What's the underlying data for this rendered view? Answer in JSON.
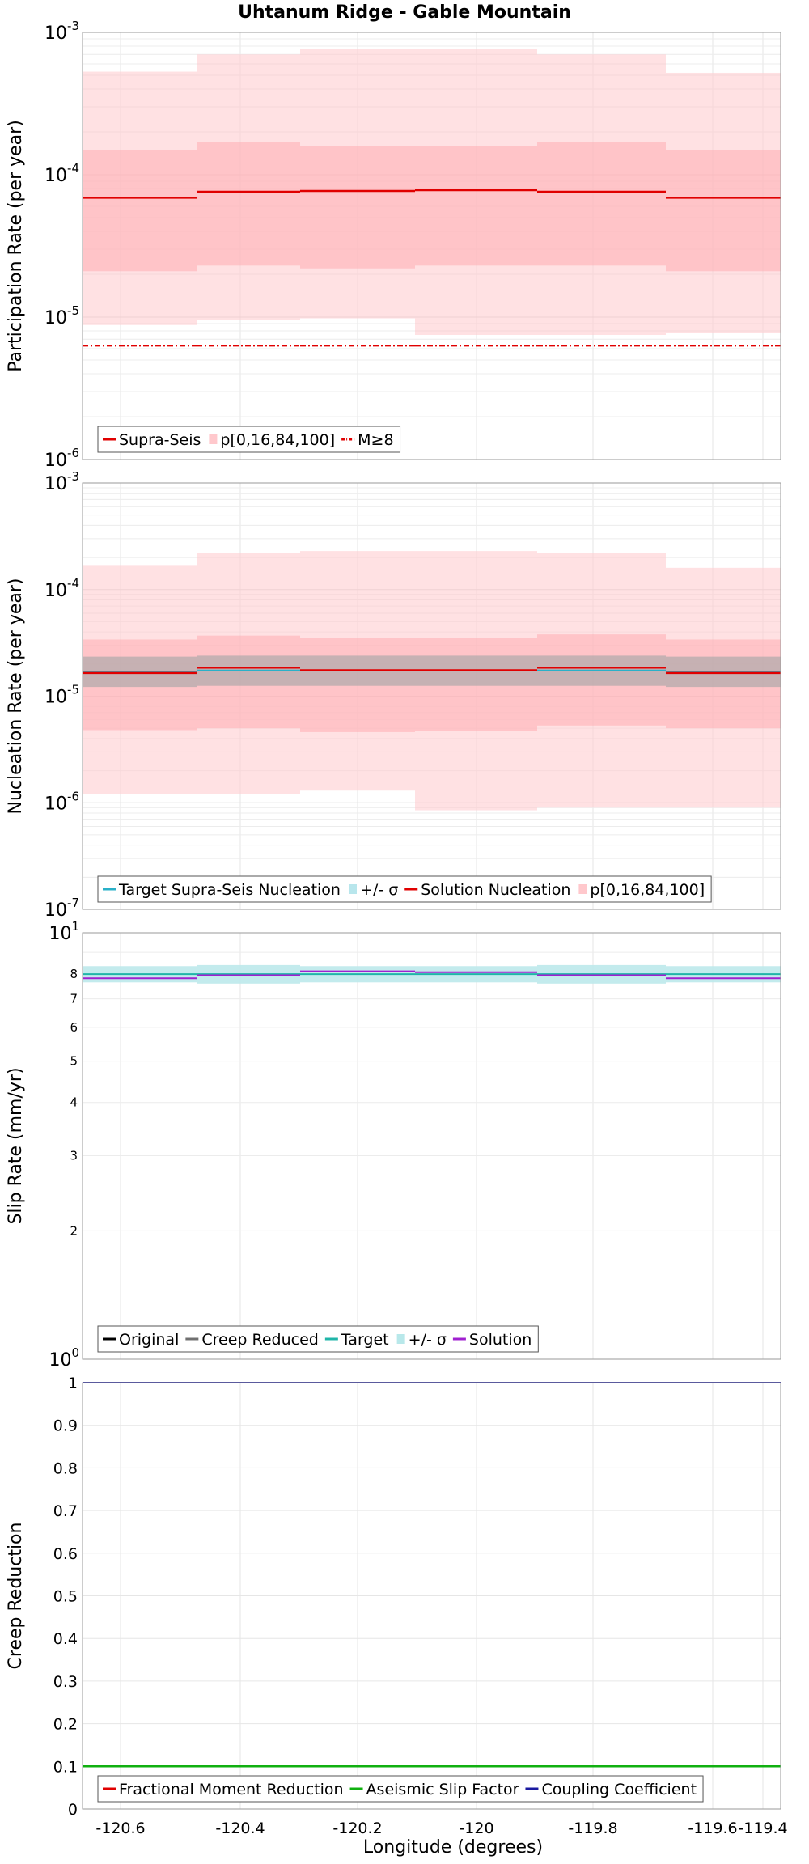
{
  "figure": {
    "title": "Uhtanum Ridge - Gable Mountain",
    "xlabel": "Longitude (degrees)",
    "x_ticks": [
      "-120.6",
      "-120.4",
      "-120.2",
      "-120",
      "-119.8",
      "-119.6",
      "-119.4"
    ]
  },
  "chart_data": [
    {
      "type": "line",
      "panel": "participation",
      "ylabel": "Participation Rate (per year)",
      "y_scale": "log",
      "ylim": [
        1e-06,
        0.001
      ],
      "xlim": [
        -120.68,
        -119.38
      ],
      "y_ticks": [
        {
          "base": "10",
          "exp": "-6",
          "value": 1e-06
        },
        {
          "base": "10",
          "exp": "-5",
          "value": 1e-05
        },
        {
          "base": "10",
          "exp": "-4",
          "value": 0.0001
        },
        {
          "base": "10",
          "exp": "-3",
          "value": 0.001
        }
      ],
      "sections": [
        -120.68,
        -120.465,
        -120.275,
        -120.055,
        -119.835,
        -119.59,
        -119.38
      ],
      "bands": [
        {
          "color": "#ffc8cc",
          "opacity": 0.55,
          "low": [
            8.8e-06,
            9.5e-06,
            9.8e-06,
            7.5e-06,
            7.5e-06,
            7.8e-06
          ],
          "high": [
            0.00053,
            0.0007,
            0.00076,
            0.00076,
            0.0007,
            0.00052
          ]
        },
        {
          "color": "#ffadb2",
          "opacity": 0.55,
          "low": [
            2.1e-05,
            2.3e-05,
            2.2e-05,
            2.3e-05,
            2.3e-05,
            2.1e-05
          ],
          "high": [
            0.00015,
            0.00017,
            0.00016,
            0.00016,
            0.00017,
            0.00015
          ]
        }
      ],
      "series": [
        {
          "name": "Supra-Seis",
          "color": "#e00000",
          "dash": "",
          "width": 2.5,
          "values": [
            6.9e-05,
            7.6e-05,
            7.7e-05,
            7.8e-05,
            7.6e-05,
            6.9e-05
          ]
        },
        {
          "name": "M≥8",
          "color": "#e00000",
          "dash": "7,3,2,3",
          "width": 2,
          "values": [
            6.3e-06,
            6.3e-06,
            6.3e-06,
            6.3e-06,
            6.3e-06,
            6.3e-06
          ]
        }
      ],
      "legend": [
        {
          "label": "Supra-Seis",
          "kind": "line",
          "color": "#e00000"
        },
        {
          "label": "p[0,16,84,100]",
          "kind": "band",
          "color": "#ffc8cc"
        },
        {
          "label": "M≥8",
          "kind": "dashline",
          "color": "#e00000"
        }
      ]
    },
    {
      "type": "line",
      "panel": "nucleation",
      "ylabel": "Nucleation Rate (per year)",
      "y_scale": "log",
      "ylim": [
        1e-07,
        0.001
      ],
      "xlim": [
        -120.68,
        -119.38
      ],
      "y_ticks": [
        {
          "base": "10",
          "exp": "-7",
          "value": 1e-07
        },
        {
          "base": "10",
          "exp": "-6",
          "value": 1e-06
        },
        {
          "base": "10",
          "exp": "-5",
          "value": 1e-05
        },
        {
          "base": "10",
          "exp": "-4",
          "value": 0.0001
        },
        {
          "base": "10",
          "exp": "-3",
          "value": 0.001
        }
      ],
      "sections": [
        -120.68,
        -120.465,
        -120.275,
        -120.055,
        -119.835,
        -119.59,
        -119.38
      ],
      "bands": [
        {
          "color": "#ffc8cc",
          "opacity": 0.55,
          "low": [
            1.2e-06,
            1.2e-06,
            1.3e-06,
            8.5e-07,
            9e-07,
            9e-07
          ],
          "high": [
            0.00017,
            0.00022,
            0.00023,
            0.00023,
            0.00022,
            0.00016
          ]
        },
        {
          "color": "#ffadb2",
          "opacity": 0.55,
          "low": [
            4.8e-06,
            5e-06,
            4.6e-06,
            4.7e-06,
            5.3e-06,
            5e-06
          ],
          "high": [
            3.4e-05,
            3.7e-05,
            3.5e-05,
            3.5e-05,
            3.8e-05,
            3.4e-05
          ]
        },
        {
          "color": "#a8a8a8",
          "opacity": 0.65,
          "low": [
            1.22e-05,
            1.25e-05,
            1.25e-05,
            1.25e-05,
            1.25e-05,
            1.22e-05
          ],
          "high": [
            2.35e-05,
            2.4e-05,
            2.4e-05,
            2.4e-05,
            2.4e-05,
            2.35e-05
          ]
        }
      ],
      "series": [
        {
          "name": "Target Supra-Seis Nucleation",
          "color": "#2ab0c8",
          "dash": "",
          "width": 1.5,
          "values": [
            1.7e-05,
            1.75e-05,
            1.75e-05,
            1.75e-05,
            1.75e-05,
            1.7e-05
          ]
        },
        {
          "name": "Solution Nucleation",
          "color": "#e00000",
          "dash": "",
          "width": 2.5,
          "values": [
            1.65e-05,
            1.85e-05,
            1.75e-05,
            1.75e-05,
            1.85e-05,
            1.65e-05
          ]
        }
      ],
      "legend": [
        {
          "label": "Target Supra-Seis Nucleation",
          "kind": "line",
          "color": "#2ab0c8"
        },
        {
          "label": "+/- σ",
          "kind": "band",
          "color": "#b8e6ec"
        },
        {
          "label": "Solution Nucleation",
          "kind": "line",
          "color": "#e00000"
        },
        {
          "label": "p[0,16,84,100]",
          "kind": "band",
          "color": "#ffc8cc"
        }
      ]
    },
    {
      "type": "line",
      "panel": "slip",
      "ylabel": "Slip Rate (mm/yr)",
      "y_scale": "log",
      "ylim": [
        1,
        10
      ],
      "xlim": [
        -120.68,
        -119.38
      ],
      "y_ticks": [
        {
          "base": "10",
          "exp": "0",
          "value": 1
        },
        {
          "base": "10",
          "exp": "1",
          "value": 10
        }
      ],
      "y_minor_labels": [
        {
          "label": "2",
          "value": 2
        },
        {
          "label": "3",
          "value": 3
        },
        {
          "label": "4",
          "value": 4
        },
        {
          "label": "5",
          "value": 5
        },
        {
          "label": "6",
          "value": 6
        },
        {
          "label": "7",
          "value": 7
        },
        {
          "label": "8",
          "value": 8
        }
      ],
      "sections": [
        -120.68,
        -120.465,
        -120.275,
        -120.055,
        -119.835,
        -119.59,
        -119.38
      ],
      "bands": [
        {
          "color": "#b8e8ea",
          "opacity": 0.85,
          "low": [
            7.65,
            7.6,
            7.65,
            7.65,
            7.6,
            7.65
          ],
          "high": [
            8.35,
            8.4,
            8.35,
            8.35,
            8.4,
            8.35
          ]
        }
      ],
      "series": [
        {
          "name": "Target",
          "color": "#1fb5a8",
          "dash": "",
          "width": 2,
          "values": [
            8.0,
            8.0,
            8.0,
            8.0,
            8.0,
            8.0
          ]
        },
        {
          "name": "Solution",
          "color": "#a020d0",
          "dash": "",
          "width": 2,
          "values": [
            7.82,
            7.95,
            8.12,
            8.08,
            7.95,
            7.82
          ]
        }
      ],
      "legend": [
        {
          "label": "Original",
          "kind": "line",
          "color": "#000000"
        },
        {
          "label": "Creep Reduced",
          "kind": "line",
          "color": "#707070"
        },
        {
          "label": "Target",
          "kind": "line",
          "color": "#1fb5a8"
        },
        {
          "label": "+/- σ",
          "kind": "band",
          "color": "#b8e8ea"
        },
        {
          "label": "Solution",
          "kind": "line",
          "color": "#a020d0"
        }
      ]
    },
    {
      "type": "line",
      "panel": "creep",
      "ylabel": "Creep Reduction",
      "y_scale": "linear",
      "ylim": [
        0,
        1
      ],
      "xlim": [
        -120.68,
        -119.38
      ],
      "y_ticks": [
        {
          "label": "0",
          "value": 0
        },
        {
          "label": "0.1",
          "value": 0.1
        },
        {
          "label": "0.2",
          "value": 0.2
        },
        {
          "label": "0.3",
          "value": 0.3
        },
        {
          "label": "0.4",
          "value": 0.4
        },
        {
          "label": "0.5",
          "value": 0.5
        },
        {
          "label": "0.6",
          "value": 0.6
        },
        {
          "label": "0.7",
          "value": 0.7
        },
        {
          "label": "0.8",
          "value": 0.8
        },
        {
          "label": "0.9",
          "value": 0.9
        },
        {
          "label": "1",
          "value": 1
        }
      ],
      "sections": [
        -120.68,
        -119.38
      ],
      "bands": [],
      "series": [
        {
          "name": "Aseismic Slip Factor",
          "color": "#10b010",
          "dash": "",
          "width": 2.5,
          "values": [
            0.1
          ]
        },
        {
          "name": "Coupling Coefficient",
          "color": "#1a1aa0",
          "dash": "",
          "width": 2,
          "values": [
            1.0
          ]
        }
      ],
      "legend": [
        {
          "label": "Fractional Moment Reduction",
          "kind": "line",
          "color": "#e00000"
        },
        {
          "label": "Aseismic Slip Factor",
          "kind": "line",
          "color": "#10b010"
        },
        {
          "label": "Coupling Coefficient",
          "kind": "line",
          "color": "#1a1aa0"
        }
      ]
    }
  ]
}
